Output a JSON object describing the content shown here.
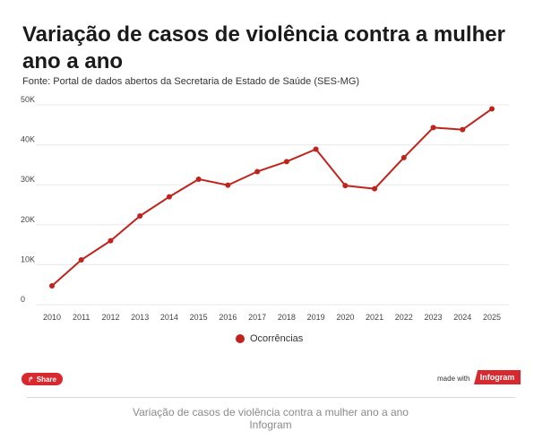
{
  "header": {
    "title": "Variação de casos de violência contra a mulher ano a ano",
    "source": "Fonte: Portal de dados abertos da Secretaria de Estado de Saúde (SES-MG)"
  },
  "chart_data": {
    "type": "line",
    "title": "Variação de casos de violência contra a mulher ano a ano",
    "subtitle": "Fonte: Portal de dados abertos da Secretaria de Estado de Saúde (SES-MG)",
    "xlabel": "",
    "ylabel": "",
    "x": [
      "2010",
      "2011",
      "2012",
      "2013",
      "2014",
      "2015",
      "2016",
      "2017",
      "2018",
      "2019",
      "2020",
      "2021",
      "2022",
      "2023",
      "2024",
      "2025"
    ],
    "series": [
      {
        "name": "Ocorrências",
        "values": [
          4700,
          11200,
          16000,
          22200,
          27000,
          31400,
          29900,
          33300,
          35800,
          38900,
          29800,
          29000,
          36800,
          44300,
          43800,
          49000
        ]
      }
    ],
    "yticks": [
      0,
      10000,
      20000,
      30000,
      40000,
      50000
    ],
    "ytick_labels": [
      "0",
      "10K",
      "20K",
      "30K",
      "40K",
      "50K"
    ],
    "ylim": [
      0,
      50000
    ],
    "grid": true,
    "legend": "bottom-center",
    "color": "#c0221c"
  },
  "footer": {
    "share_label": "Share",
    "made_with": "made with",
    "brand": "Infogram",
    "caption_line1": "Variação de casos de violência contra a mulher ano a ano",
    "caption_line2": "Infogram"
  },
  "colors": {
    "accent": "#d8292f",
    "line": "#c0221c",
    "grid": "#e8e8e8"
  }
}
